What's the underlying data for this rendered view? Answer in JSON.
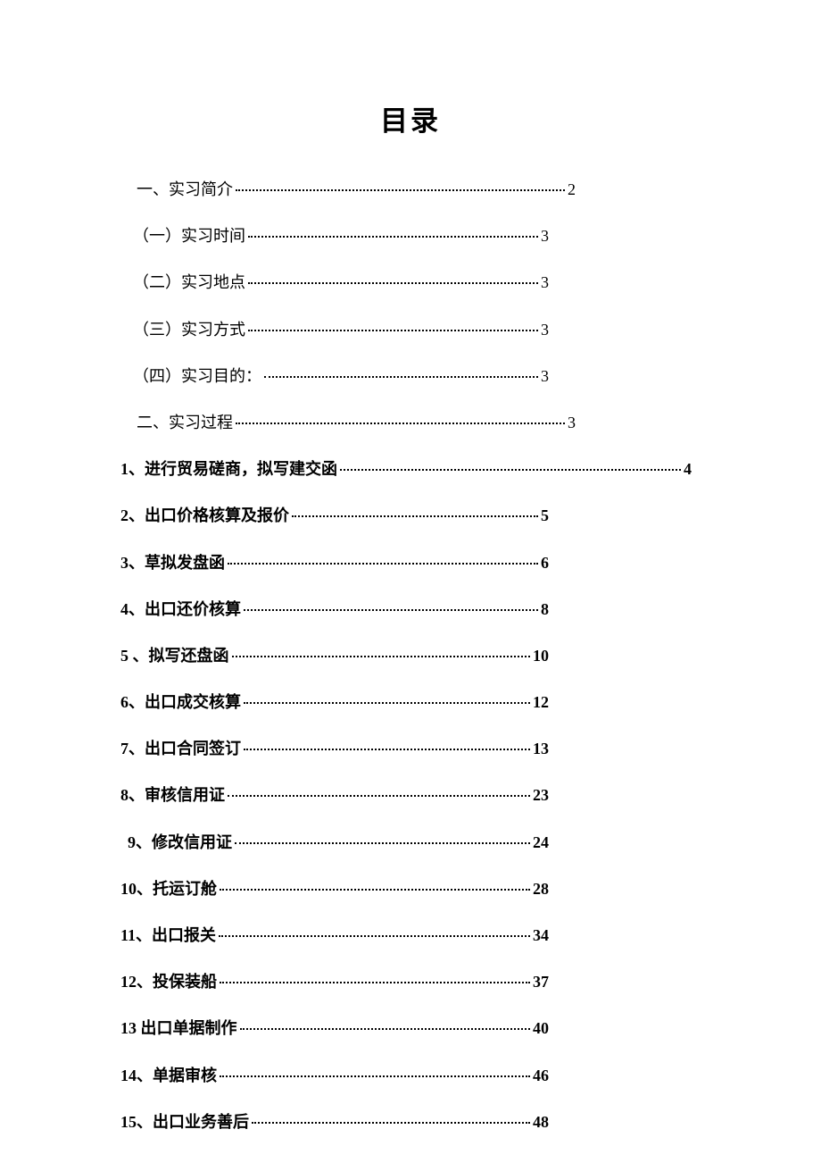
{
  "title": "目录",
  "entries": [
    {
      "label": "一、实习简介 ",
      "page": " 2",
      "bold": false,
      "indent": "indent-1",
      "width": "mid-line"
    },
    {
      "label": "（一）实习时间 ",
      "page": " 3",
      "bold": false,
      "indent": "indent-2",
      "width": "short-line"
    },
    {
      "label": "（二）实习地点 ",
      "page": " 3",
      "bold": false,
      "indent": "indent-2",
      "width": "short-line"
    },
    {
      "label": "（三）实习方式 ",
      "page": " 3",
      "bold": false,
      "indent": "indent-2",
      "width": "short-line"
    },
    {
      "label": "（四）实习目的：",
      "page": "3",
      "bold": false,
      "indent": "indent-2",
      "width": "short-line"
    },
    {
      "label": "二、实习过程 ",
      "page": " 3",
      "bold": false,
      "indent": "indent-1",
      "width": "mid-line"
    },
    {
      "label": "1、进行贸易磋商，拟写建交函",
      "page": "4",
      "bold": true,
      "indent": "",
      "width": "long-line"
    },
    {
      "label": "2、出口价格核算及报价",
      "page": " 5",
      "bold": true,
      "indent": "",
      "width": "short-line"
    },
    {
      "label": "3、草拟发盘函",
      "page": " 6",
      "bold": true,
      "indent": "",
      "width": "short-line"
    },
    {
      "label": "4、出口还价核算",
      "page": " 8",
      "bold": true,
      "indent": "",
      "width": "short-line"
    },
    {
      "label": "5 、拟写还盘函",
      "page": " 10",
      "bold": true,
      "indent": "",
      "width": "short-line"
    },
    {
      "label": "6、出口成交核算",
      "page": " 12",
      "bold": true,
      "indent": "",
      "width": "short-line"
    },
    {
      "label": "7、出口合同签订",
      "page": " 13",
      "bold": true,
      "indent": "",
      "width": "short-line"
    },
    {
      "label": "8、审核信用证",
      "page": "23",
      "bold": true,
      "indent": "",
      "width": "short-line"
    },
    {
      "label": "9、修改信用证",
      "page": " 24",
      "bold": true,
      "indent": "indent-9",
      "width": "short-line"
    },
    {
      "label": "10、托运订舱",
      "page": " 28",
      "bold": true,
      "indent": "",
      "width": "short-line"
    },
    {
      "label": "11、出口报关",
      "page": " 34",
      "bold": true,
      "indent": "",
      "width": "short-line"
    },
    {
      "label": "12、投保装船",
      "page": " 37",
      "bold": true,
      "indent": "",
      "width": "short-line"
    },
    {
      "label": "13 出口单据制作",
      "page": " 40",
      "bold": true,
      "indent": "",
      "width": "short-line"
    },
    {
      "label": "14、单据审核",
      "page": " 46",
      "bold": true,
      "indent": "",
      "width": "short-line"
    },
    {
      "label": "15、出口业务善后",
      "page": " 48",
      "bold": true,
      "indent": "",
      "width": "short-line"
    }
  ]
}
